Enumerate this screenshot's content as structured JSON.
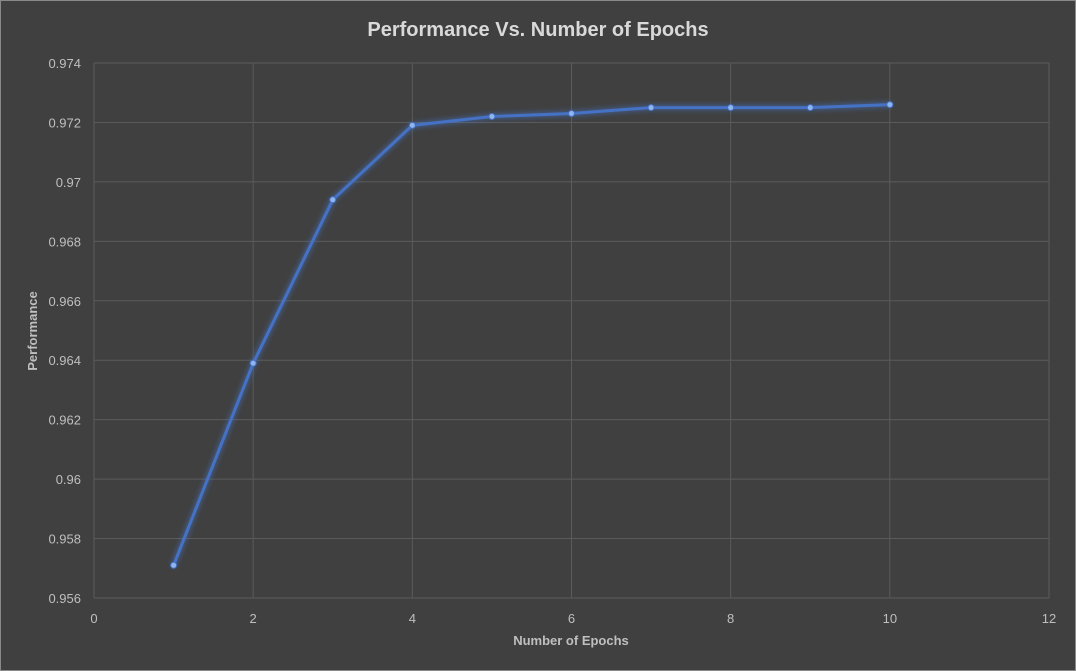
{
  "chart_data": {
    "type": "line",
    "title": "Performance Vs. Number of Epochs",
    "xlabel": "Number of Epochs",
    "ylabel": "Performance",
    "xlim": [
      0,
      12
    ],
    "ylim": [
      0.956,
      0.974
    ],
    "x_ticks": [
      "0",
      "2",
      "4",
      "6",
      "8",
      "10",
      "12"
    ],
    "y_ticks": [
      "0.974",
      "0.972",
      "0.97",
      "0.968",
      "0.966",
      "0.964",
      "0.962",
      "0.96",
      "0.958",
      "0.956"
    ],
    "grid": true,
    "legend": "none",
    "colors": {
      "background": "#404040",
      "series": "#4472c4",
      "grid": "#5b5b5b",
      "text": "#bfbfbf",
      "title": "#d9d9d9"
    },
    "series": [
      {
        "x": [
          1,
          2,
          3,
          4,
          5,
          6,
          7,
          8,
          9,
          10
        ],
        "values": [
          0.9571,
          0.9639,
          0.9694,
          0.9719,
          0.9722,
          0.9723,
          0.9725,
          0.9725,
          0.9725,
          0.9726
        ]
      }
    ]
  }
}
